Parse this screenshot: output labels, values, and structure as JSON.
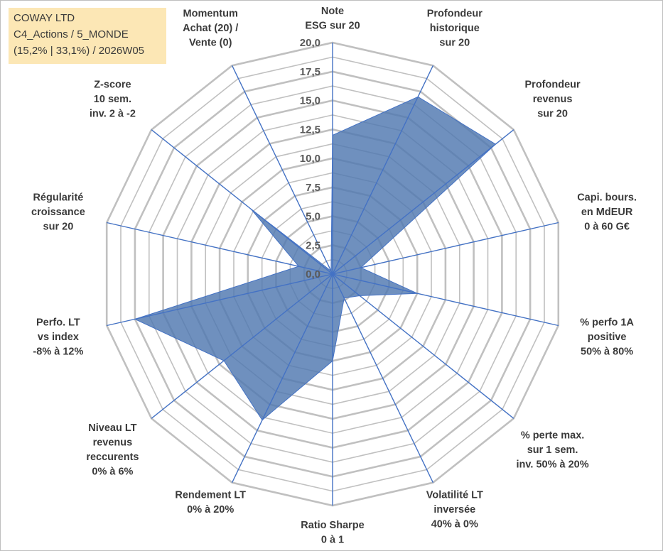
{
  "title_box": {
    "line1": "COWAY LTD",
    "line2": "C4_Actions / 5_MONDE",
    "line3": "(15,2% | 33,1%) / 2026W05"
  },
  "chart_data": {
    "type": "radar",
    "title": "COWAY LTD",
    "rlim": [
      0,
      20
    ],
    "ticks": [
      "0,0",
      "2,5",
      "5,0",
      "7,5",
      "10,0",
      "12,5",
      "15,0",
      "17,5",
      "20,0"
    ],
    "tick_values": [
      0,
      2.5,
      5,
      7.5,
      10,
      12.5,
      15,
      17.5,
      20
    ],
    "minor_step": 1.25,
    "fill_color": "#4f77b0",
    "line_color": "#4472c4",
    "grid_color": "#c0c0c0",
    "axes": [
      {
        "label": [
          "Note",
          "ESG sur 20"
        ],
        "value": 12.0
      },
      {
        "label": [
          "Profondeur",
          "historique",
          "sur 20"
        ],
        "value": 17.0
      },
      {
        "label": [
          "Profondeur",
          "revenus",
          "sur 20"
        ],
        "value": 18.0
      },
      {
        "label": [
          "Capi. bours.",
          "en MdEUR",
          "0 à 60 G€"
        ],
        "value": 2.5
      },
      {
        "label": [
          "% perfo 1A",
          "positive",
          "50% à 80%"
        ],
        "value": 7.5
      },
      {
        "label": [
          "% perte max.",
          "sur 1 sem.",
          "inv. 50% à 20%"
        ],
        "value": 3.0
      },
      {
        "label": [
          "Volatilité LT",
          "inversée",
          "40% à 0%"
        ],
        "value": 2.3
      },
      {
        "label": [
          "Ratio Sharpe",
          "0 à 1"
        ],
        "value": 7.5
      },
      {
        "label": [
          "Rendement LT",
          "0% à 20%"
        ],
        "value": 14.0
      },
      {
        "label": [
          "Niveau LT",
          "revenus",
          "reccurents",
          "0% à 6%"
        ],
        "value": 12.0
      },
      {
        "label": [
          "Perfo. LT",
          "vs index",
          "-8% à 12%"
        ],
        "value": 17.5
      },
      {
        "label": [
          "Régularité",
          "croissance",
          "sur 20"
        ],
        "value": 3.0
      },
      {
        "label": [
          "Z-score",
          "10 sem.",
          "inv. 2 à -2"
        ],
        "value": 9.0
      },
      {
        "label": [
          "Momentum",
          "Achat (20) /",
          "Vente (0)"
        ],
        "value": 0.3
      }
    ]
  }
}
